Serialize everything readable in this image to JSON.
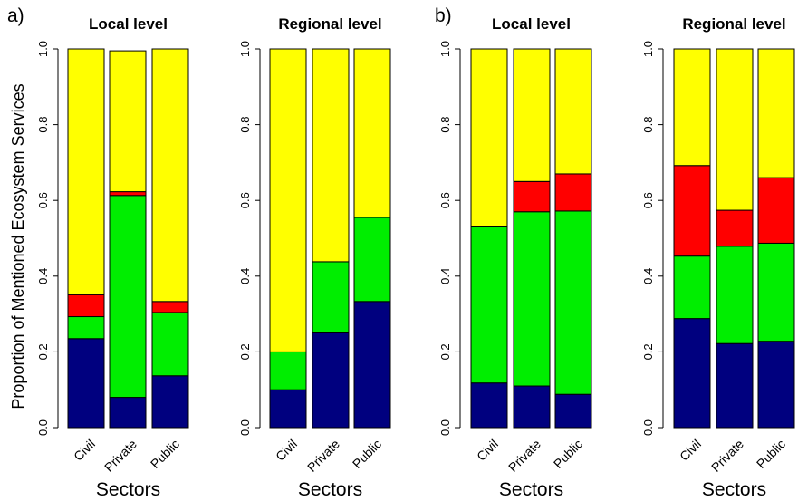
{
  "figure": {
    "ylabel": "Proportion of Mentioned Ecosystem Services",
    "xlabel": "Sectors",
    "panel_labels": [
      "a)",
      "b)"
    ]
  },
  "colors": {
    "navy": "#00007f",
    "green": "#00ee00",
    "red": "#ff0000",
    "yellow": "#ffff00"
  },
  "chart_data": [
    {
      "type": "bar",
      "stacked": true,
      "panel": "a)",
      "title": "Local level",
      "xlabel": "Sectors",
      "ylabel": "Proportion of Mentioned Ecosystem Services",
      "ylim": [
        0,
        1
      ],
      "yticks": [
        "0.0",
        "0.2",
        "0.4",
        "0.6",
        "0.8",
        "1.0"
      ],
      "categories": [
        "Civil",
        "Private",
        "Public"
      ],
      "series": [
        {
          "color": "#00007f",
          "values": [
            0.235,
            0.08,
            0.137
          ]
        },
        {
          "color": "#00ee00",
          "values": [
            0.058,
            0.533,
            0.167
          ]
        },
        {
          "color": "#ff0000",
          "values": [
            0.058,
            0.01,
            0.029
          ]
        },
        {
          "color": "#ffff00",
          "values": [
            0.649,
            0.372,
            0.667
          ]
        }
      ]
    },
    {
      "type": "bar",
      "stacked": true,
      "panel": "a)",
      "title": "Regional level",
      "xlabel": "Sectors",
      "ylim": [
        0,
        1
      ],
      "yticks": [
        "0.0",
        "0.2",
        "0.4",
        "0.6",
        "0.8",
        "1.0"
      ],
      "categories": [
        "Civil",
        "Private",
        "Public"
      ],
      "series": [
        {
          "color": "#00007f",
          "values": [
            0.1,
            0.25,
            0.333
          ]
        },
        {
          "color": "#00ee00",
          "values": [
            0.1,
            0.188,
            0.222
          ]
        },
        {
          "color": "#ff0000",
          "values": [
            0,
            0,
            0
          ]
        },
        {
          "color": "#ffff00",
          "values": [
            0.8,
            0.562,
            0.445
          ]
        }
      ]
    },
    {
      "type": "bar",
      "stacked": true,
      "panel": "b)",
      "title": "Local level",
      "xlabel": "Sectors",
      "ylim": [
        0,
        1
      ],
      "yticks": [
        "0.0",
        "0.2",
        "0.4",
        "0.6",
        "0.8",
        "1.0"
      ],
      "categories": [
        "Civil",
        "Private",
        "Public"
      ],
      "series": [
        {
          "color": "#00007f",
          "values": [
            0.118,
            0.11,
            0.088
          ]
        },
        {
          "color": "#00ee00",
          "values": [
            0.412,
            0.46,
            0.484
          ]
        },
        {
          "color": "#ff0000",
          "values": [
            0,
            0.08,
            0.098
          ]
        },
        {
          "color": "#ffff00",
          "values": [
            0.47,
            0.35,
            0.33
          ]
        }
      ]
    },
    {
      "type": "bar",
      "stacked": true,
      "panel": "b)",
      "title": "Regional level",
      "xlabel": "Sectors",
      "ylim": [
        0,
        1
      ],
      "yticks": [
        "0.0",
        "0.2",
        "0.4",
        "0.6",
        "0.8",
        "1.0"
      ],
      "categories": [
        "Civil",
        "Private",
        "Public"
      ],
      "series": [
        {
          "color": "#00007f",
          "values": [
            0.288,
            0.222,
            0.228
          ]
        },
        {
          "color": "#00ee00",
          "values": [
            0.165,
            0.257,
            0.259
          ]
        },
        {
          "color": "#ff0000",
          "values": [
            0.239,
            0.095,
            0.173
          ]
        },
        {
          "color": "#ffff00",
          "values": [
            0.308,
            0.426,
            0.34
          ]
        }
      ]
    }
  ]
}
